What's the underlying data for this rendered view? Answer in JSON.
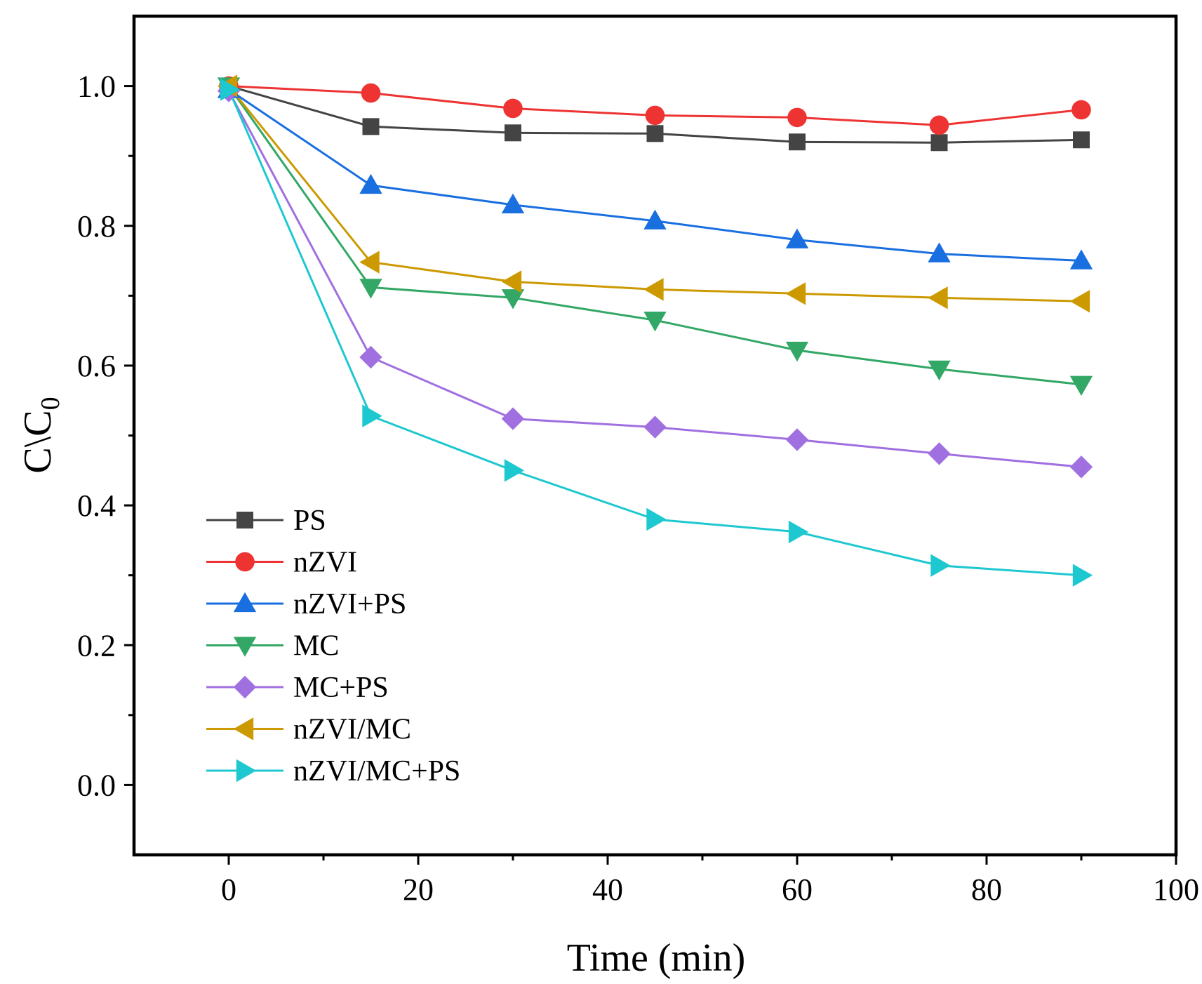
{
  "chart_data": {
    "type": "line",
    "title": "",
    "xlabel": "Time (min)",
    "ylabel_main": "C\\C",
    "ylabel_sub": "0",
    "xlim": [
      -10,
      100
    ],
    "ylim": [
      -0.1,
      1.1
    ],
    "xticks": [
      0,
      20,
      40,
      60,
      80,
      100
    ],
    "xticks_minor": [
      10,
      30,
      50,
      70,
      90
    ],
    "yticks": [
      0.0,
      0.2,
      0.4,
      0.6,
      0.8,
      1.0
    ],
    "yticks_minor": [
      0.1,
      0.3,
      0.5,
      0.7,
      0.9
    ],
    "xtick_labels": [
      "0",
      "20",
      "40",
      "60",
      "80",
      "100"
    ],
    "ytick_labels": [
      "0.0",
      "0.2",
      "0.4",
      "0.6",
      "0.8",
      "1.0"
    ],
    "grid": false,
    "legend_position": "bottom-left",
    "x": [
      0,
      15,
      30,
      45,
      60,
      75,
      90
    ],
    "series": [
      {
        "name": "PS",
        "marker": "square",
        "color": "#444444",
        "values": [
          1.0,
          0.942,
          0.933,
          0.932,
          0.92,
          0.919,
          0.923
        ]
      },
      {
        "name": "nZVI",
        "marker": "circle",
        "color": "#ee3333",
        "values": [
          1.0,
          0.99,
          0.968,
          0.958,
          0.955,
          0.944,
          0.966
        ]
      },
      {
        "name": "nZVI+PS",
        "marker": "triangle-up",
        "color": "#1a6fe0",
        "values": [
          0.995,
          0.858,
          0.83,
          0.807,
          0.78,
          0.76,
          0.75
        ]
      },
      {
        "name": "MC",
        "marker": "triangle-down",
        "color": "#33a866",
        "values": [
          1.0,
          0.712,
          0.697,
          0.665,
          0.622,
          0.595,
          0.573
        ]
      },
      {
        "name": "MC+PS",
        "marker": "diamond",
        "color": "#a070e0",
        "values": [
          0.993,
          0.612,
          0.524,
          0.512,
          0.494,
          0.474,
          0.455
        ]
      },
      {
        "name": "nZVI/MC",
        "marker": "triangle-left",
        "color": "#cc9900",
        "values": [
          1.0,
          0.748,
          0.72,
          0.709,
          0.703,
          0.697,
          0.692
        ]
      },
      {
        "name": "nZVI/MC+PS",
        "marker": "triangle-right",
        "color": "#1ec8d0",
        "values": [
          0.995,
          0.528,
          0.45,
          0.38,
          0.362,
          0.314,
          0.3
        ]
      }
    ]
  }
}
